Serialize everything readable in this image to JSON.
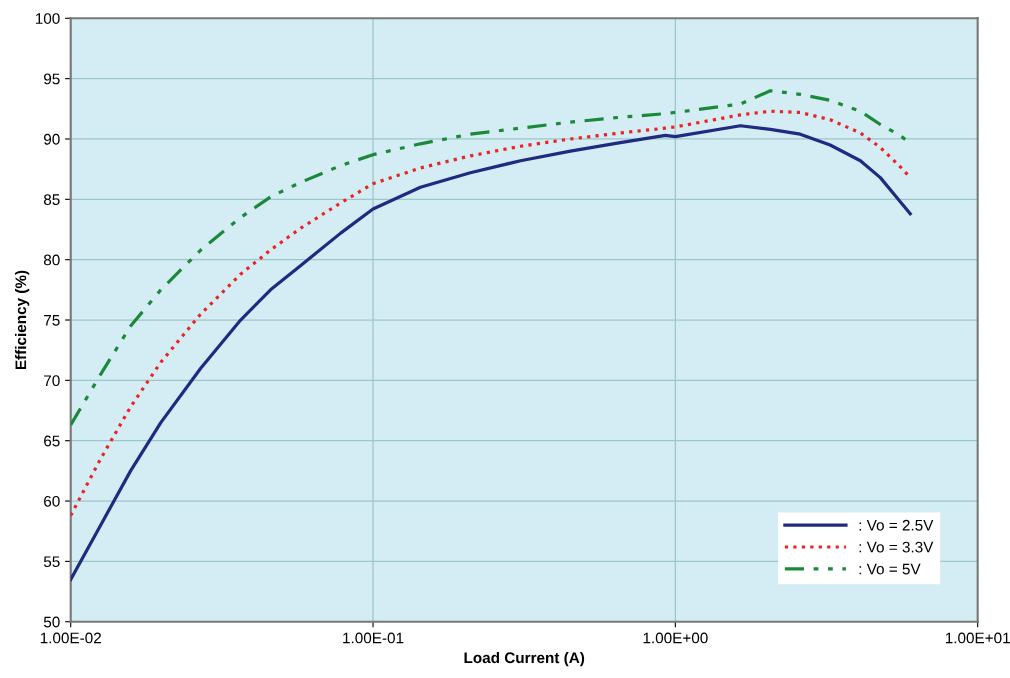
{
  "chart_data": {
    "type": "line",
    "xlabel": "Load Current (A)",
    "ylabel": "Efficiency (%)",
    "log": "x",
    "xlim": [
      0.01,
      10
    ],
    "xticks": [
      {
        "value": 0.01,
        "label": "1.00E-02"
      },
      {
        "value": 0.1,
        "label": "1.00E-01"
      },
      {
        "value": 1,
        "label": "1.00E+00"
      },
      {
        "value": 10,
        "label": "1.00E+01"
      }
    ],
    "ylim": [
      50,
      100
    ],
    "yticks": [
      50,
      55,
      60,
      65,
      70,
      75,
      80,
      85,
      90,
      95,
      100
    ],
    "grid": true,
    "legend": "bottom right",
    "marker": "none",
    "x": [
      0.01,
      0.01256,
      0.01578,
      0.01986,
      0.02692,
      0.03648,
      0.04581,
      0.05754,
      0.07816,
      0.1,
      0.1435,
      0.2099,
      0.3076,
      0.4498,
      0.6577,
      0.9268,
      1.0,
      1.641,
      2.061,
      2.588,
      3.251,
      4.093,
      4.764,
      5.546,
      5.984
    ],
    "series": [
      {
        "name": ": Vo = 2.5V",
        "color": "#1f2a80",
        "line_style": "solid",
        "values": [
          53.5,
          58,
          62.5,
          66.5,
          71,
          75,
          77.5,
          79.5,
          82.2,
          84.2,
          86,
          87.2,
          88.2,
          89,
          89.7,
          90.3,
          90.2,
          91.1,
          90.8,
          90.4,
          89.5,
          88.2,
          86.8,
          84.8,
          83.8
        ]
      },
      {
        "name": ": Vo = 3.3V",
        "color": "#ee2222",
        "line_style": "dotted",
        "values": [
          58.8,
          63.5,
          67.8,
          71.5,
          75.5,
          78.8,
          80.8,
          82.6,
          84.7,
          86.3,
          87.6,
          88.6,
          89.4,
          90.0,
          90.5,
          90.9,
          91.0,
          92.0,
          92.3,
          92.2,
          91.6,
          90.5,
          89.3,
          87.7,
          86.8
        ]
      },
      {
        "name": ": Vo = 5V",
        "color": "#1a8a3a",
        "line_style": "dashdot",
        "values": [
          66.3,
          70.5,
          74.5,
          77.5,
          80.8,
          83.5,
          85.2,
          86.4,
          87.8,
          88.7,
          89.6,
          90.4,
          90.9,
          91.4,
          91.8,
          92.1,
          92.2,
          92.9,
          94.0,
          93.7,
          93.2,
          92.3,
          91.2,
          90.3,
          89.6
        ]
      }
    ]
  }
}
